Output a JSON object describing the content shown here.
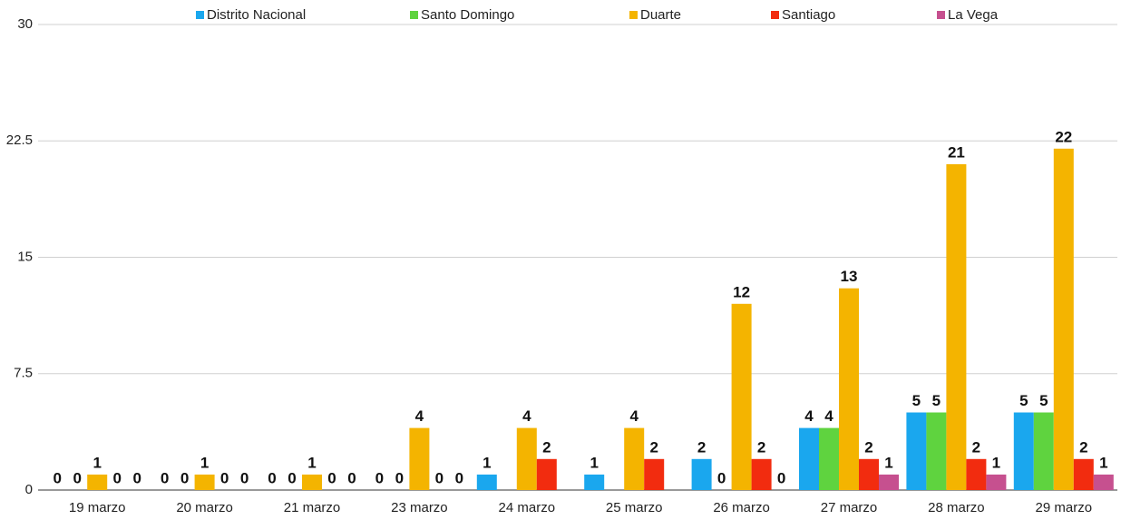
{
  "chart_data": {
    "type": "bar",
    "categories": [
      "19 marzo",
      "20 marzo",
      "21 marzo",
      "23 marzo",
      "24 marzo",
      "25 marzo",
      "26 marzo",
      "27 marzo",
      "28 marzo",
      "29 marzo"
    ],
    "series": [
      {
        "name": "Distrito Nacional",
        "color": "#1aa7ee",
        "values": [
          0,
          0,
          0,
          0,
          1,
          1,
          2,
          4,
          5,
          5
        ]
      },
      {
        "name": "Santo Domingo",
        "color": "#5fd33f",
        "values": [
          0,
          0,
          0,
          0,
          null,
          null,
          0,
          4,
          5,
          5
        ]
      },
      {
        "name": "Duarte",
        "color": "#f4b400",
        "values": [
          1,
          1,
          1,
          4,
          4,
          4,
          12,
          13,
          21,
          22
        ]
      },
      {
        "name": "Santiago",
        "color": "#f22c0f",
        "values": [
          0,
          0,
          0,
          0,
          2,
          2,
          2,
          2,
          2,
          2
        ]
      },
      {
        "name": "La Vega",
        "color": "#c6508f",
        "values": [
          0,
          0,
          0,
          0,
          null,
          null,
          0,
          1,
          1,
          1
        ]
      }
    ],
    "ylim": [
      0,
      30
    ],
    "yticks": [
      0,
      7.5,
      15,
      22.5,
      30
    ],
    "grid": true,
    "legend": "top"
  }
}
